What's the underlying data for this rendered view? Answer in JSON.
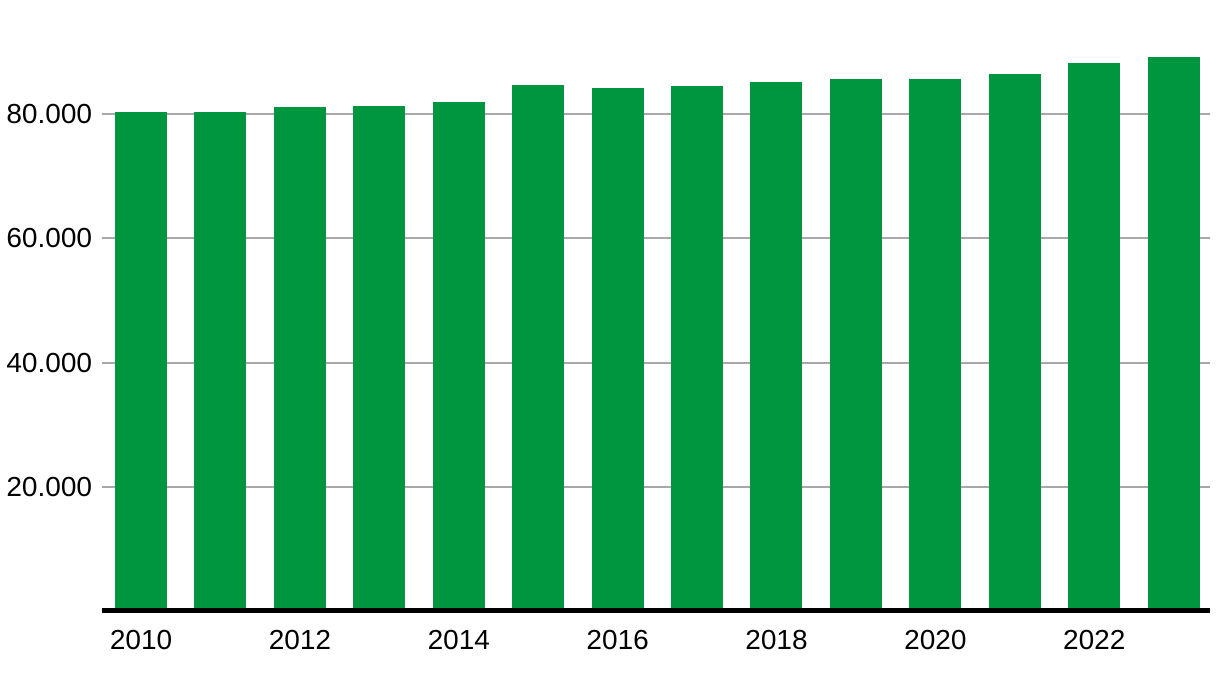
{
  "chart_data": {
    "type": "bar",
    "title": "",
    "xlabel": "",
    "ylabel": "",
    "categories": [
      2010,
      2011,
      2012,
      2013,
      2014,
      2015,
      2016,
      2017,
      2018,
      2019,
      2020,
      2021,
      2022,
      2023
    ],
    "values": [
      80400,
      80400,
      81200,
      81400,
      82000,
      84700,
      84200,
      84500,
      85200,
      85700,
      85700,
      86500,
      88200,
      89200
    ],
    "ylim": [
      0,
      92000
    ],
    "y_ticks": [
      20000,
      40000,
      60000,
      80000
    ],
    "y_tick_labels": [
      "20.000",
      "40.000",
      "60.000",
      "80.000"
    ],
    "x_ticks": [
      2010,
      2012,
      2014,
      2016,
      2018,
      2020,
      2022
    ],
    "x_tick_labels": [
      "2010",
      "2012",
      "2014",
      "2016",
      "2018",
      "2020",
      "2022"
    ],
    "grid": true,
    "legend_position": "none",
    "colors": {
      "bar": "#009640",
      "gridline": "#a8a8a8",
      "axis": "#000000",
      "text": "#000000",
      "background": "#ffffff"
    }
  }
}
